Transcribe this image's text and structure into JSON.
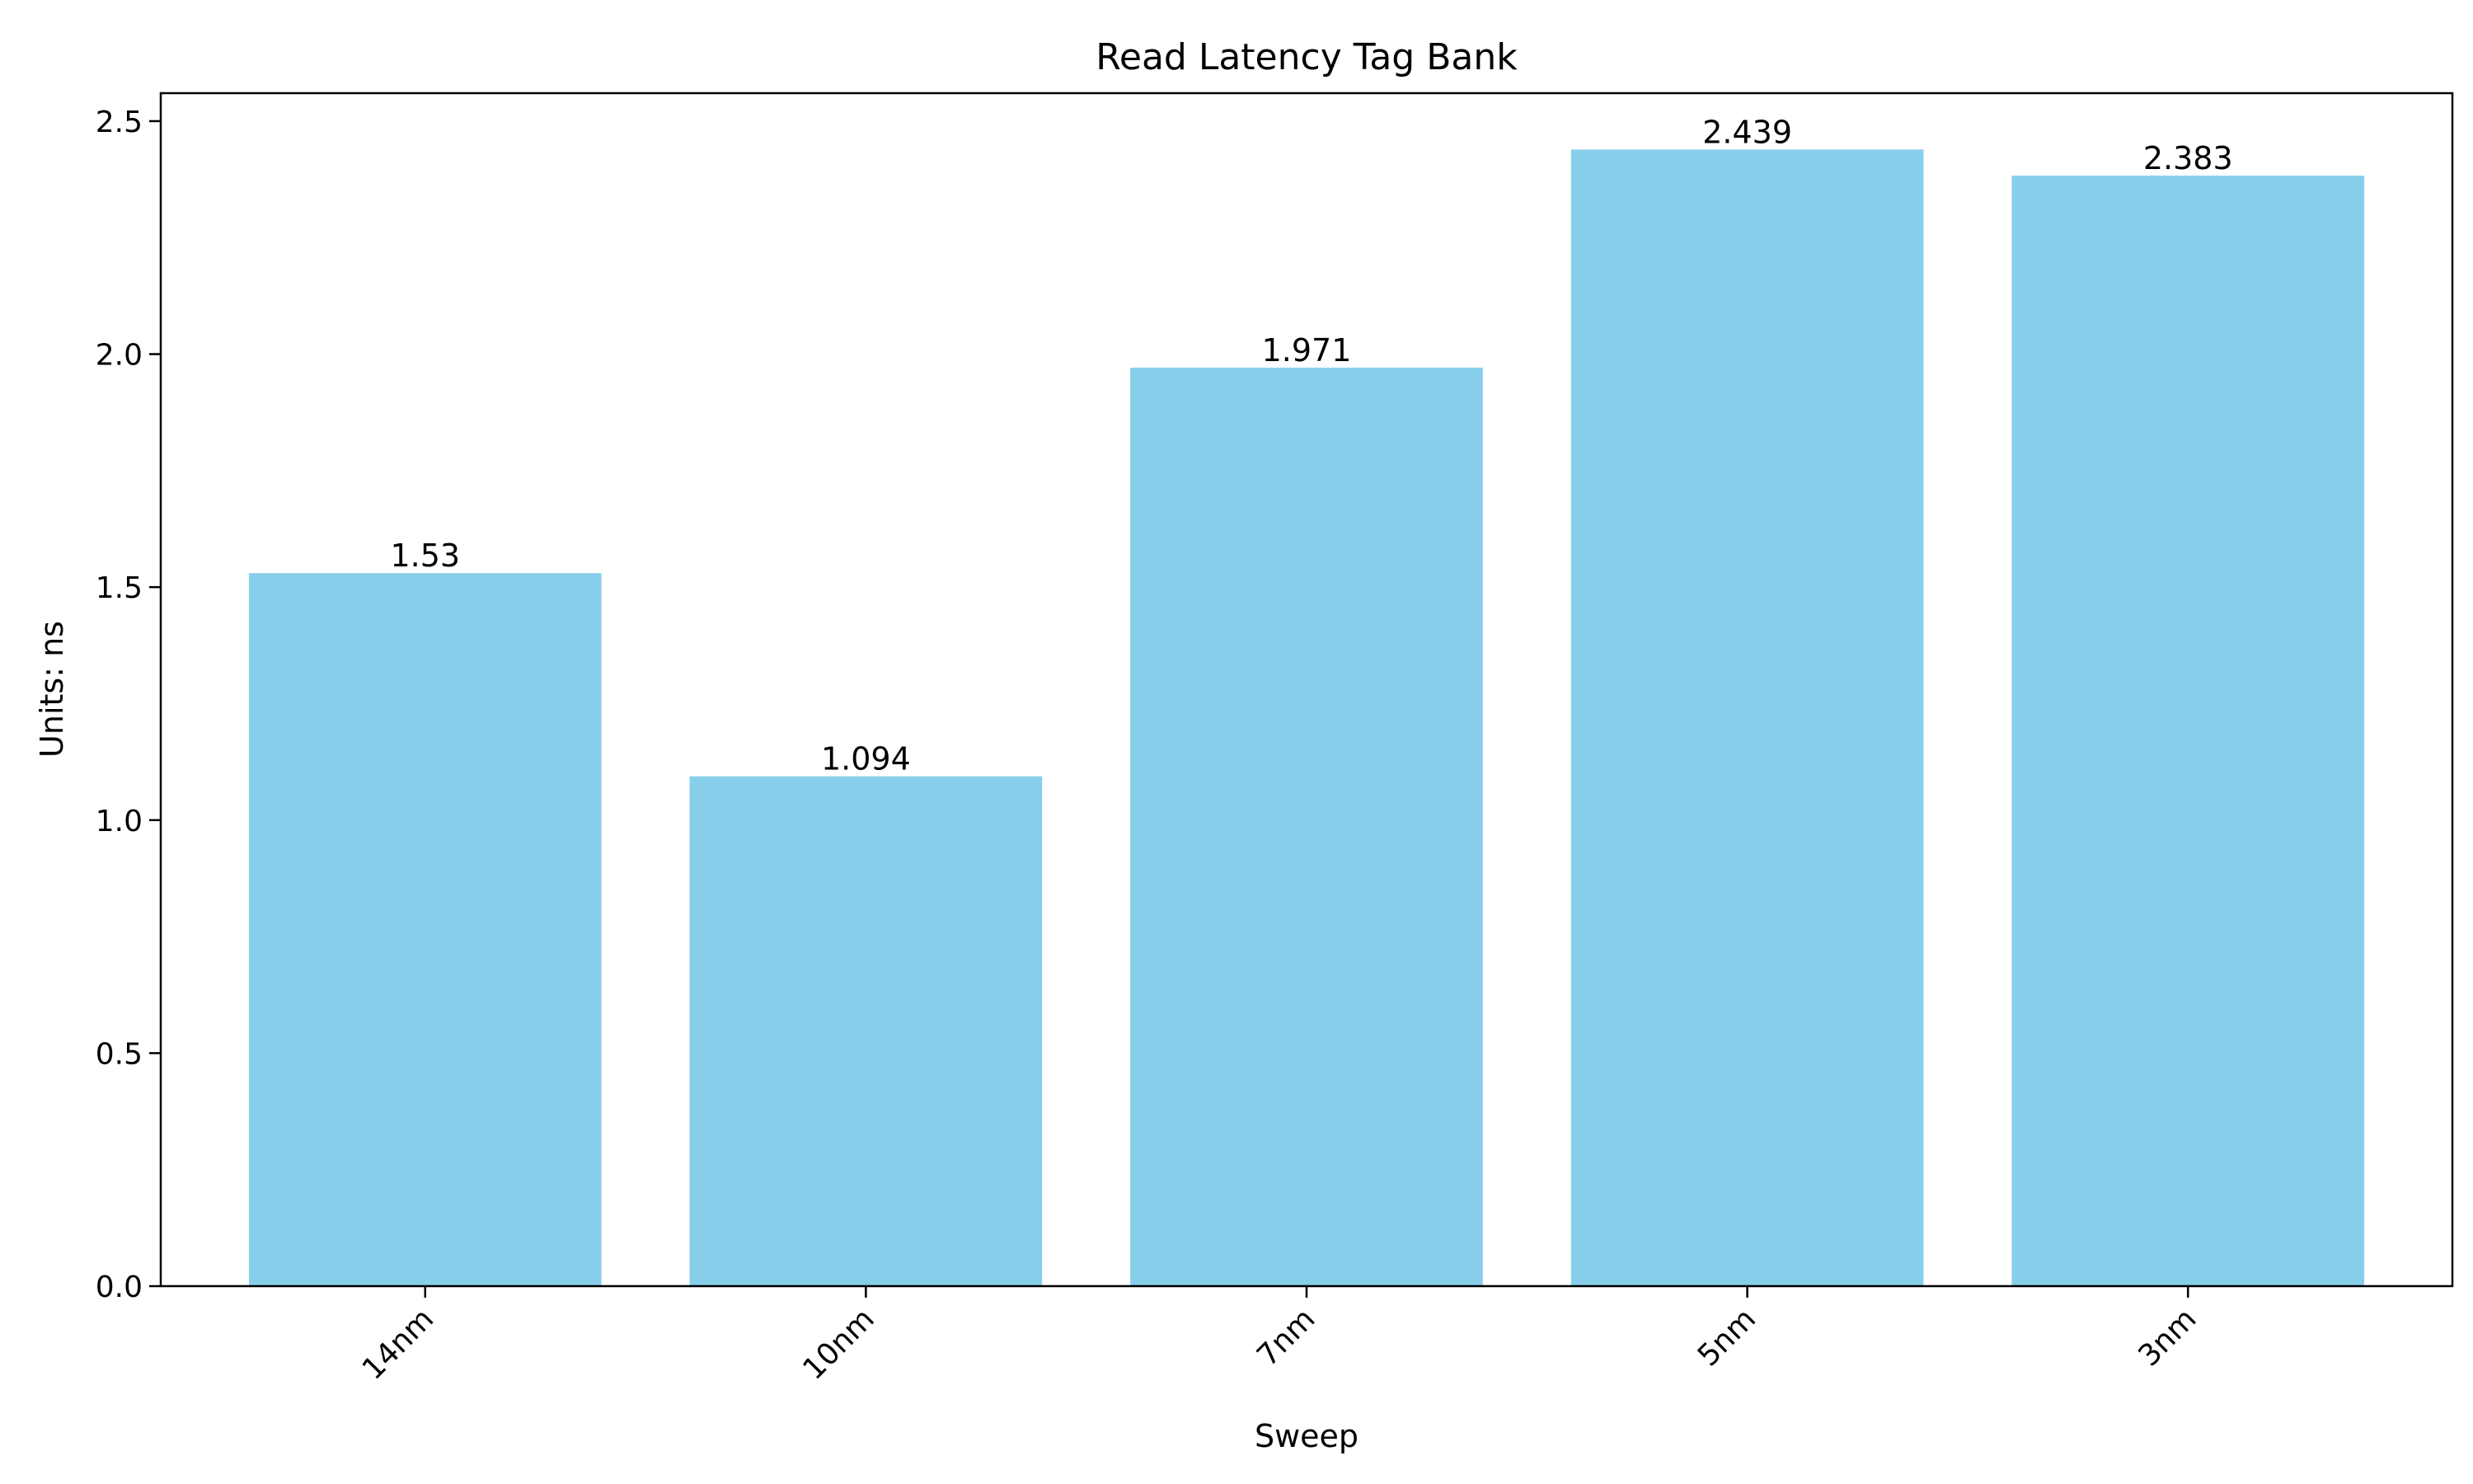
{
  "chart_data": {
    "type": "bar",
    "title": "Read Latency Tag Bank",
    "xlabel": "Sweep",
    "ylabel": "Units: ns",
    "categories": [
      "14nm",
      "10nm",
      "7nm",
      "5nm",
      "3nm"
    ],
    "values": [
      1.53,
      1.094,
      1.971,
      2.439,
      2.383
    ],
    "value_labels": [
      "1.53",
      "1.094",
      "1.971",
      "2.439",
      "2.383"
    ],
    "ylim": [
      0,
      2.56
    ],
    "yticks": [
      0.0,
      0.5,
      1.0,
      1.5,
      2.0,
      2.5
    ],
    "ytick_labels": [
      "0.0",
      "0.5",
      "1.0",
      "1.5",
      "2.0",
      "2.5"
    ],
    "bar_color": "#87CEEB",
    "grid": false,
    "legend": false
  }
}
